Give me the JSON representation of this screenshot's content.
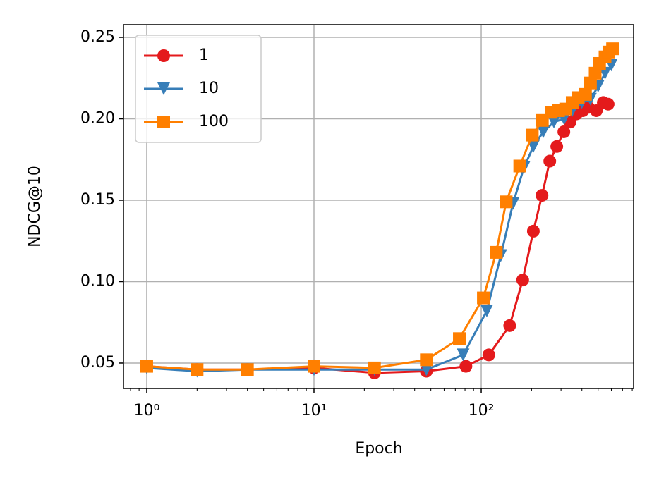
{
  "chart_data": {
    "type": "line",
    "xlabel": "Epoch",
    "ylabel": "NDCG@10",
    "xscale": "log",
    "grid": true,
    "legend": "upper left",
    "xlim": [
      0.726,
      815
    ],
    "ylim": [
      0.0344,
      0.2578
    ],
    "xticks": [
      {
        "value": 1,
        "label": "10⁰"
      },
      {
        "value": 10,
        "label": "10¹"
      },
      {
        "value": 100,
        "label": "10²"
      }
    ],
    "yticks": [
      0.05,
      {
        "value": 0.1,
        "label": "0.10"
      },
      0.15,
      {
        "value": 0.2,
        "label": "0.20"
      },
      0.25
    ],
    "series": [
      {
        "name": "1",
        "color": "#e41a1c",
        "marker": "circle",
        "x": [
          1,
          2,
          4,
          10,
          23,
          47,
          81,
          111,
          148,
          177,
          205,
          231,
          257,
          283,
          312,
          340,
          371,
          405,
          438,
          488,
          537,
          574
        ],
        "values": [
          0.048,
          0.046,
          0.046,
          0.047,
          0.044,
          0.045,
          0.048,
          0.055,
          0.073,
          0.101,
          0.131,
          0.153,
          0.174,
          0.183,
          0.192,
          0.198,
          0.203,
          0.205,
          0.207,
          0.205,
          0.21,
          0.209
        ]
      },
      {
        "name": "10",
        "color": "#377eb8",
        "marker": "triangle",
        "x": [
          1,
          2,
          4,
          10,
          23,
          47,
          78,
          108,
          131,
          155,
          180,
          205,
          235,
          272,
          313,
          350,
          400,
          450,
          500,
          550,
          600
        ],
        "values": [
          0.047,
          0.045,
          0.046,
          0.046,
          0.046,
          0.046,
          0.055,
          0.082,
          0.116,
          0.148,
          0.17,
          0.183,
          0.192,
          0.198,
          0.2,
          0.205,
          0.21,
          0.212,
          0.22,
          0.228,
          0.233
        ]
      },
      {
        "name": "100",
        "color": "#ff7f00",
        "marker": "square",
        "x": [
          1,
          2,
          4,
          10,
          23,
          47,
          74,
          103,
          123,
          141,
          170,
          202,
          232,
          262,
          290,
          320,
          350,
          380,
          420,
          450,
          480,
          510,
          550,
          580,
          610
        ],
        "values": [
          0.048,
          0.046,
          0.046,
          0.048,
          0.047,
          0.052,
          0.065,
          0.09,
          0.118,
          0.149,
          0.171,
          0.19,
          0.199,
          0.204,
          0.205,
          0.206,
          0.21,
          0.213,
          0.215,
          0.222,
          0.228,
          0.234,
          0.238,
          0.241,
          0.243
        ]
      }
    ]
  }
}
